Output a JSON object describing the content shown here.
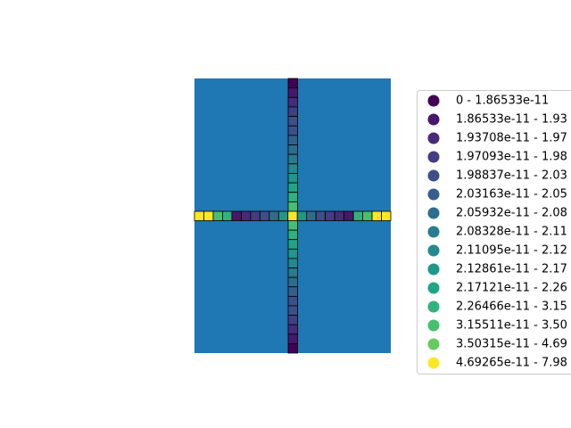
{
  "map": {
    "background_color": "#1f77b4",
    "column_cells": [
      0,
      1,
      2,
      3,
      4,
      4,
      5,
      6,
      7,
      8,
      9,
      10,
      11,
      12,
      12,
      11,
      10,
      9,
      8,
      7,
      6,
      5,
      4,
      4,
      3,
      2,
      1,
      0
    ],
    "row_cells": [
      14,
      14,
      12,
      11,
      1,
      2,
      3,
      4,
      6,
      9,
      14,
      9,
      6,
      4,
      3,
      2,
      1,
      11,
      12,
      14,
      14
    ],
    "legend": [
      {
        "label": "0 - 1.86533e-11",
        "color": "#440154"
      },
      {
        "label": "1.86533e-11 - 1.93",
        "color": "#481769"
      },
      {
        "label": "1.93708e-11 - 1.97",
        "color": "#472a7a"
      },
      {
        "label": "1.97093e-11 - 1.98",
        "color": "#433d84"
      },
      {
        "label": "1.98837e-11 - 2.03",
        "color": "#3d4e8a"
      },
      {
        "label": "2.03163e-11 - 2.05",
        "color": "#355e8d"
      },
      {
        "label": "2.05932e-11 - 2.08",
        "color": "#2e6d8e"
      },
      {
        "label": "2.08328e-11 - 2.11",
        "color": "#297b8e"
      },
      {
        "label": "2.11095e-11 - 2.12",
        "color": "#23898e"
      },
      {
        "label": "2.12861e-11 - 2.17",
        "color": "#1f978b"
      },
      {
        "label": "2.17121e-11 - 2.26",
        "color": "#21a585"
      },
      {
        "label": "2.26466e-11 - 3.15",
        "color": "#2eb37c"
      },
      {
        "label": "3.15511e-11 - 3.50",
        "color": "#46c06f"
      },
      {
        "label": "3.50315e-11 - 4.69",
        "color": "#65cb5e"
      },
      {
        "label": "4.69265e-11 - 7.98",
        "color": "#fde725"
      }
    ]
  }
}
